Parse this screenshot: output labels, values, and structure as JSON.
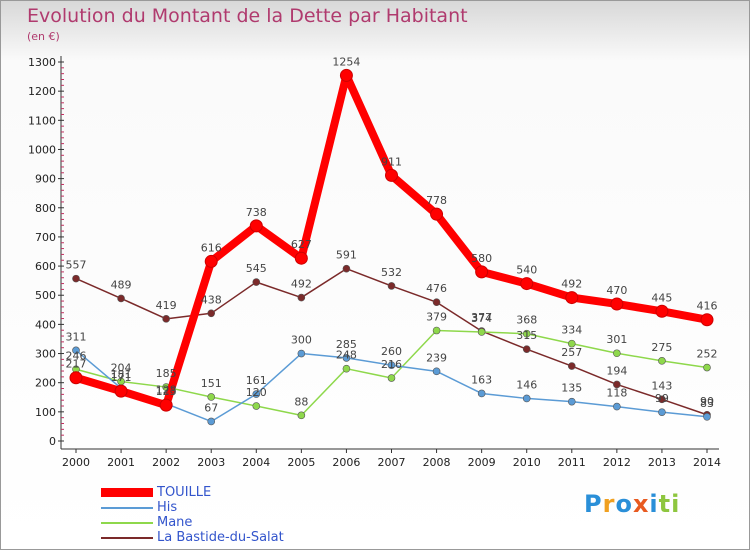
{
  "title": "Evolution du Montant de la Dette par Habitant",
  "unit": "(en €)",
  "brand": "Proxiti",
  "chart_data": {
    "type": "line",
    "title": "Evolution du Montant de la Dette par Habitant",
    "ylabel": "(en €)",
    "x": [
      "2000",
      "2001",
      "2002",
      "2003",
      "2004",
      "2005",
      "2006",
      "2007",
      "2008",
      "2009",
      "2010",
      "2011",
      "2012",
      "2013",
      "2014"
    ],
    "ylim": [
      0,
      1300
    ],
    "yticks": [
      0,
      100,
      200,
      300,
      400,
      500,
      600,
      700,
      800,
      900,
      1000,
      1100,
      1200,
      1300
    ],
    "grid": false,
    "legend_position": "bottom-left",
    "series": [
      {
        "name": "TOUILLE",
        "color": "#ff0000",
        "values": [
          217,
          171,
          123,
          616,
          738,
          627,
          1254,
          911,
          778,
          580,
          540,
          492,
          470,
          445,
          416
        ]
      },
      {
        "name": "His",
        "color": "#5b9bd5",
        "values": [
          311,
          181,
          128,
          67,
          161,
          300,
          285,
          260,
          239,
          163,
          146,
          135,
          118,
          99,
          83
        ]
      },
      {
        "name": "Mane",
        "color": "#8ed84b",
        "values": [
          246,
          204,
          185,
          151,
          120,
          88,
          248,
          216,
          379,
          374,
          368,
          334,
          301,
          275,
          252
        ]
      },
      {
        "name": "La Bastide-du-Salat",
        "color": "#7b2a2a",
        "values": [
          557,
          489,
          419,
          438,
          545,
          492,
          591,
          532,
          476,
          377,
          315,
          257,
          194,
          143,
          90
        ]
      }
    ]
  }
}
